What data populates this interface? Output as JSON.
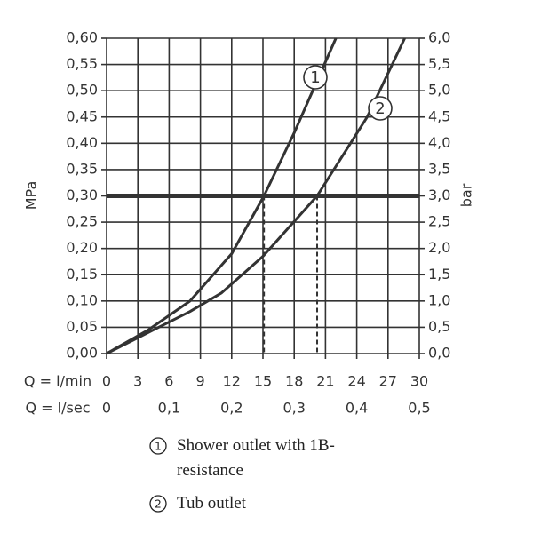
{
  "chart_data": {
    "type": "line",
    "x_axis_label": "Q = l/min",
    "x2_axis_label": "Q = l/sec",
    "y_axis_label": "MPa",
    "y2_axis_label": "bar",
    "xlim": [
      0,
      30
    ],
    "xticks": [
      0,
      3,
      6,
      9,
      12,
      15,
      18,
      21,
      24,
      27,
      30
    ],
    "x2lim": [
      0,
      0.5
    ],
    "x2ticks": [
      0,
      {
        "value": 0.1,
        "label": "0,1"
      },
      {
        "value": 0.2,
        "label": "0,2"
      },
      {
        "value": 0.3,
        "label": "0,3"
      },
      {
        "value": 0.4,
        "label": "0,4"
      },
      {
        "value": 0.5,
        "label": "0,5"
      }
    ],
    "ylim": [
      0,
      0.6
    ],
    "yticks": [
      {
        "value": 0,
        "label": "0,00"
      },
      {
        "value": 0.05,
        "label": "0,05"
      },
      {
        "value": 0.1,
        "label": "0,10"
      },
      {
        "value": 0.15,
        "label": "0,15"
      },
      {
        "value": 0.2,
        "label": "0,20"
      },
      {
        "value": 0.25,
        "label": "0,25"
      },
      {
        "value": 0.3,
        "label": "0,30"
      },
      {
        "value": 0.35,
        "label": "0,35"
      },
      {
        "value": 0.4,
        "label": "0,40"
      },
      {
        "value": 0.45,
        "label": "0,45"
      },
      {
        "value": 0.5,
        "label": "0,50"
      },
      {
        "value": 0.55,
        "label": "0,55"
      },
      {
        "value": 0.6,
        "label": "0,60"
      }
    ],
    "y2lim": [
      0,
      6
    ],
    "y2ticks": [
      {
        "value": 0,
        "label": "0,0"
      },
      {
        "value": 0.5,
        "label": "0,5"
      },
      {
        "value": 1,
        "label": "1,0"
      },
      {
        "value": 1.5,
        "label": "1,5"
      },
      {
        "value": 2,
        "label": "2,0"
      },
      {
        "value": 2.5,
        "label": "2,5"
      },
      {
        "value": 3,
        "label": "3,0"
      },
      {
        "value": 3.5,
        "label": "3,5"
      },
      {
        "value": 4,
        "label": "4,0"
      },
      {
        "value": 4.5,
        "label": "4,5"
      },
      {
        "value": 5,
        "label": "5,0"
      },
      {
        "value": 5.5,
        "label": "5,5"
      },
      {
        "value": 6,
        "label": "6,0"
      }
    ],
    "grid": true,
    "hline": 0.3,
    "series": [
      {
        "name": "Shower outlet with 1B-resistance",
        "marker_label": "1",
        "color": "#333333",
        "x": [
          0,
          4,
          8,
          12,
          15.1,
          18,
          22
        ],
        "values": [
          0,
          0.045,
          0.1,
          0.19,
          0.3,
          0.42,
          0.6
        ]
      },
      {
        "name": "Tub outlet",
        "marker_label": "2",
        "color": "#333333",
        "x": [
          0,
          4,
          8,
          11,
          15,
          20.2,
          25,
          28.6
        ],
        "values": [
          0,
          0.04,
          0.08,
          0.115,
          0.185,
          0.3,
          0.45,
          0.6
        ]
      }
    ]
  }
}
